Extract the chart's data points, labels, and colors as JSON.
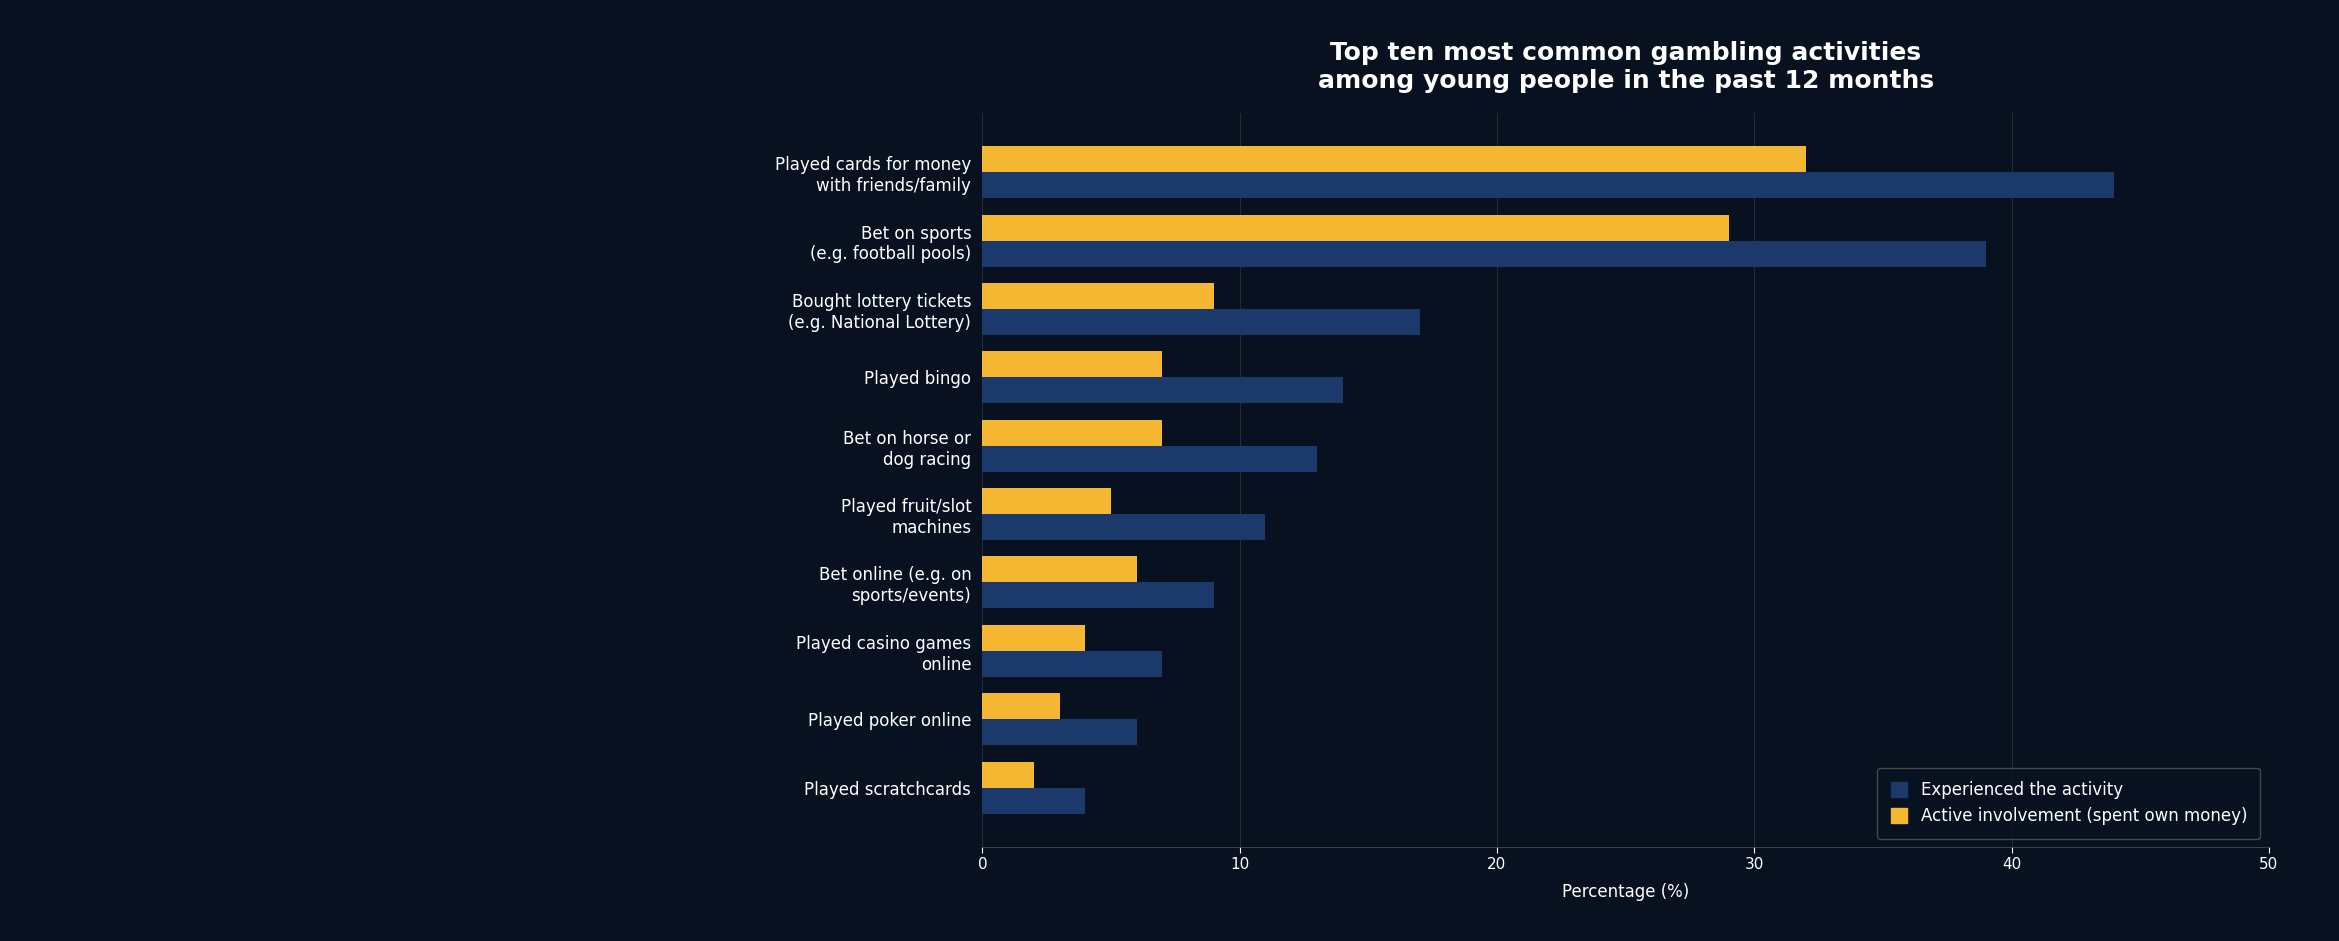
{
  "title": "Top ten most common gambling activities\namong young people in the past 12 months",
  "categories": [
    "Played cards for money\nwith friends/family",
    "Bet on sports\n(e.g. football pools)",
    "Bought lottery tickets\n(e.g. National Lottery)",
    "Played bingo",
    "Bet on horse or\ndog racing",
    "Played fruit/slot\nmachines",
    "Bet online (e.g. on\nsports/events)",
    "Played casino games\nonline",
    "Played poker online",
    "Played scratchcards"
  ],
  "experienced": [
    44,
    39,
    17,
    14,
    13,
    11,
    9,
    7,
    6,
    4
  ],
  "active": [
    32,
    29,
    9,
    7,
    7,
    5,
    6,
    4,
    3,
    2
  ],
  "color_experienced": "#1b3a6b",
  "color_active": "#f5b731",
  "background_color": "#07111f",
  "text_color": "#ffffff",
  "legend_experienced": "Experienced the activity",
  "legend_active": "Active involvement (spent own money)",
  "xlabel": "Percentage (%)",
  "xlim": [
    0,
    50
  ],
  "xticks": [
    0,
    10,
    20,
    30,
    40,
    50
  ],
  "bar_height": 0.38,
  "title_fontsize": 18,
  "label_fontsize": 12,
  "tick_fontsize": 11,
  "legend_fontsize": 12
}
